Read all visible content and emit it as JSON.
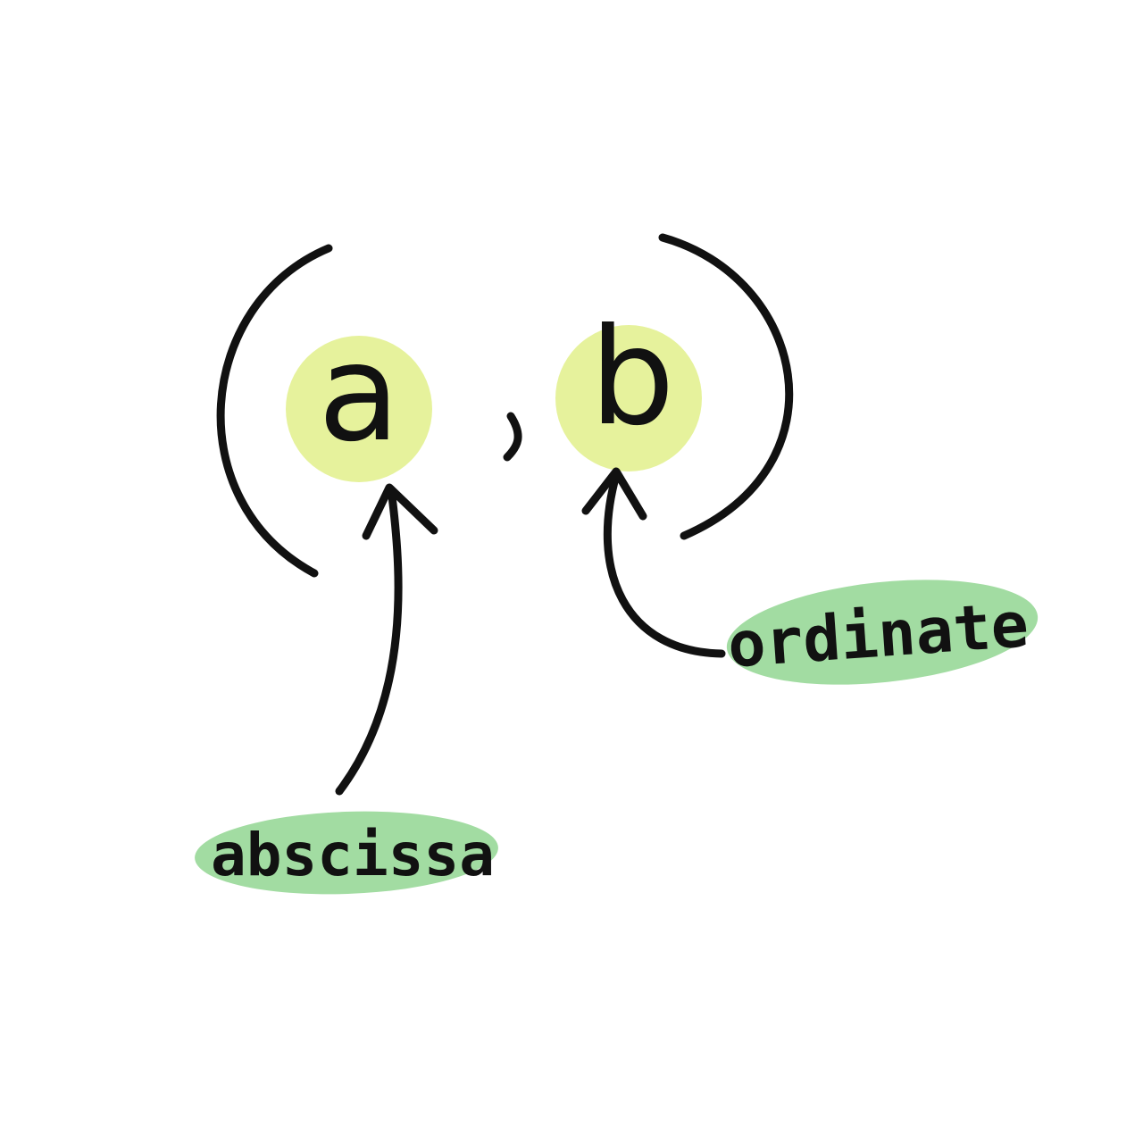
{
  "expression": {
    "open_paren": "(",
    "first": "a",
    "comma": ",",
    "second": "b",
    "close_paren": ")"
  },
  "labels": {
    "first": "abscissa",
    "second": "ordinate"
  },
  "colors": {
    "ink": "#111111",
    "highlight": "#e6f29c",
    "label_fill": "#a2dca2",
    "background": "#ffffff"
  }
}
